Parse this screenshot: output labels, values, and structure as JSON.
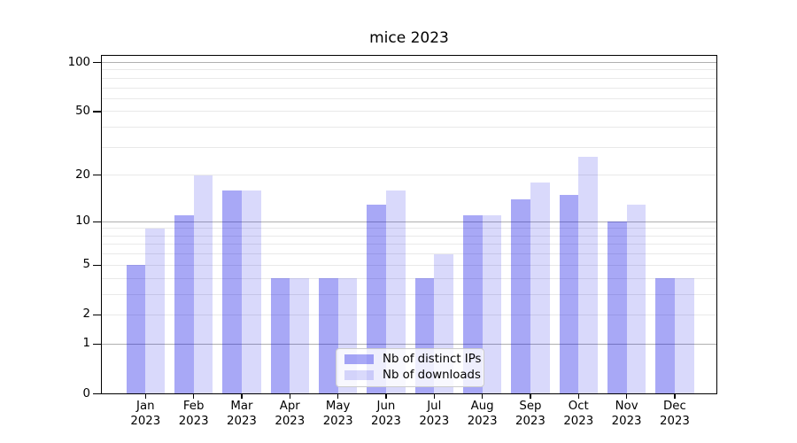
{
  "chart_data": {
    "type": "bar",
    "title": "mice 2023",
    "categories": [
      "Jan",
      "Feb",
      "Mar",
      "Apr",
      "May",
      "Jun",
      "Jul",
      "Aug",
      "Sep",
      "Oct",
      "Nov",
      "Dec"
    ],
    "x_sub_label": "2023",
    "series": [
      {
        "name": "Nb of distinct IPs",
        "color": "rgba(0,0,230,0.34)",
        "values": [
          5,
          11,
          16,
          4,
          4,
          13,
          4,
          11,
          14,
          15,
          10,
          4
        ]
      },
      {
        "name": "Nb of downloads",
        "color": "rgba(0,0,230,0.15)",
        "values": [
          9,
          20,
          16,
          4,
          4,
          16,
          6,
          11,
          18,
          26,
          13,
          4
        ]
      }
    ],
    "xlabel": "",
    "ylabel": "",
    "ylim": [
      0,
      100
    ],
    "y_scale": "log1p",
    "y_ticks": [
      0,
      1,
      2,
      5,
      10,
      20,
      50,
      100
    ],
    "major_gridlines": [
      1,
      10,
      100
    ],
    "minor_gridlines": [
      2,
      3,
      4,
      5,
      6,
      7,
      8,
      9,
      20,
      30,
      40,
      50,
      60,
      70,
      80,
      90
    ],
    "grid": "on",
    "legend_position": "lower center",
    "colors": {
      "major_grid": "#b0b0b0",
      "minor_grid": "#e9e9e9",
      "spine": "#000000"
    }
  }
}
